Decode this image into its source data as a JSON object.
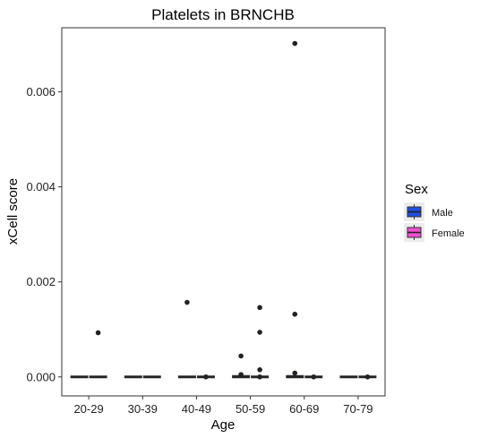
{
  "chart_data": {
    "type": "box",
    "title": "Platelets in BRNCHB",
    "xlabel": "Age",
    "ylabel": "xCell score",
    "categories": [
      "20-29",
      "30-39",
      "40-49",
      "50-59",
      "60-69",
      "70-79"
    ],
    "ylim": [
      -0.0004,
      0.00735
    ],
    "yticks": [
      0.0,
      0.002,
      0.004,
      0.006
    ],
    "ytick_labels": [
      "0.000",
      "0.002",
      "0.004",
      "0.006"
    ],
    "grid": false,
    "legend": {
      "title": "Sex",
      "placement": "right",
      "entries": [
        {
          "label": "Male",
          "color": "#1f4fe0"
        },
        {
          "label": "Female",
          "color": "#f24fd2"
        }
      ]
    },
    "series": [
      {
        "name": "Male",
        "color": "#1f4fe0",
        "boxes": [
          {
            "category": "20-29",
            "q1": 0,
            "median": 0,
            "q3": 0,
            "whisker_low": 0,
            "whisker_high": 0,
            "outliers": []
          },
          {
            "category": "30-39",
            "q1": 0,
            "median": 0,
            "q3": 0,
            "whisker_low": 0,
            "whisker_high": 0,
            "outliers": []
          },
          {
            "category": "40-49",
            "q1": 0,
            "median": 0,
            "q3": 0,
            "whisker_low": 0,
            "whisker_high": 0,
            "outliers": [
              0.00157
            ]
          },
          {
            "category": "50-59",
            "q1": 0,
            "median": 0,
            "q3": 1e-05,
            "whisker_low": 0,
            "whisker_high": 2e-05,
            "outliers": [
              0.00044,
              5e-05
            ]
          },
          {
            "category": "60-69",
            "q1": 0,
            "median": 0,
            "q3": 1e-05,
            "whisker_low": 0,
            "whisker_high": 2e-05,
            "outliers": [
              0.00702,
              0.00132,
              8e-05
            ]
          },
          {
            "category": "70-79",
            "q1": 0,
            "median": 0,
            "q3": 0,
            "whisker_low": 0,
            "whisker_high": 0,
            "outliers": []
          }
        ]
      },
      {
        "name": "Female",
        "color": "#f24fd2",
        "boxes": [
          {
            "category": "20-29",
            "q1": 0,
            "median": 0,
            "q3": 0,
            "whisker_low": 0,
            "whisker_high": 0,
            "outliers": [
              0.00093
            ]
          },
          {
            "category": "30-39",
            "q1": 0,
            "median": 0,
            "q3": 0,
            "whisker_low": 0,
            "whisker_high": 0,
            "outliers": []
          },
          {
            "category": "40-49",
            "q1": 0,
            "median": 0,
            "q3": 0,
            "whisker_low": 0,
            "whisker_high": 0,
            "outliers": [
              0
            ]
          },
          {
            "category": "50-59",
            "q1": 0,
            "median": 0,
            "q3": 0,
            "whisker_low": 0,
            "whisker_high": 0,
            "outliers": [
              0.00146,
              0.00094,
              0.00015,
              0
            ]
          },
          {
            "category": "60-69",
            "q1": 0,
            "median": 0,
            "q3": 0,
            "whisker_low": 0,
            "whisker_high": 0,
            "outliers": [
              0
            ]
          },
          {
            "category": "70-79",
            "q1": 0,
            "median": 0,
            "q3": 0,
            "whisker_low": 0,
            "whisker_high": 0,
            "outliers": [
              0
            ]
          }
        ]
      }
    ]
  }
}
